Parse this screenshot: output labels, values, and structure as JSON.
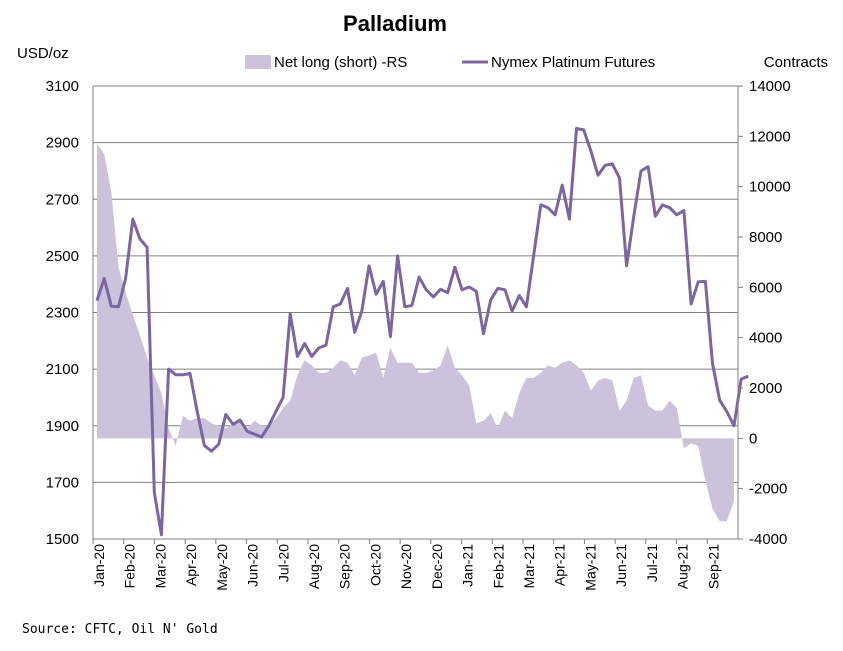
{
  "chart_data": {
    "type": "line",
    "title": "Palladium",
    "ylabel_left": "USD/oz",
    "ylabel_right": "Contracts",
    "source": "Source: CFTC, Oil N' Gold",
    "ylim_left": [
      1500,
      3100
    ],
    "yticks_left": [
      "3100",
      "2900",
      "2700",
      "2500",
      "2300",
      "2100",
      "1900",
      "1700",
      "1500"
    ],
    "ylim_right": [
      -4000,
      14000
    ],
    "yticks_right": [
      "14000",
      "12000",
      "10000",
      "8000",
      "6000",
      "4000",
      "2000",
      "0",
      "-2000",
      "-4000"
    ],
    "grid": true,
    "legend_position": "top",
    "x_ticks": [
      "Jan-20",
      "Feb-20",
      "Mar-20",
      "Apr-20",
      "May-20",
      "Jun-20",
      "Jul-20",
      "Aug-20",
      "Sep-20",
      "Oct-20",
      "Nov-20",
      "Dec-20",
      "Jan-21",
      "Feb-21",
      "Mar-21",
      "Apr-21",
      "May-21",
      "Jun-21",
      "Jul-21",
      "Aug-21",
      "Sep-21"
    ],
    "colors": {
      "area": "#ccc2dc",
      "line": "#7b65a3",
      "grid": "#808080"
    },
    "series": [
      {
        "name": "Net long (short) -RS",
        "type": "area",
        "axis": "right",
        "values": [
          11700,
          11300,
          9800,
          6800,
          5800,
          4900,
          4100,
          3200,
          2500,
          1800,
          400,
          -300,
          900,
          700,
          800,
          800,
          600,
          500,
          400,
          600,
          700,
          400,
          700,
          500,
          500,
          800,
          1200,
          1500,
          2500,
          3100,
          2900,
          2600,
          2600,
          2800,
          3100,
          3000,
          2500,
          3200,
          3300,
          3400,
          2400,
          3600,
          3000,
          3000,
          3000,
          2600,
          2600,
          2700,
          2900,
          3700,
          2800,
          2500,
          2100,
          600,
          700,
          1000,
          400,
          1100,
          800,
          1800,
          2400,
          2400,
          2600,
          2900,
          2800,
          3000,
          3100,
          2900,
          2600,
          1900,
          2300,
          2400,
          2300,
          1100,
          1500,
          2400,
          2500,
          1300,
          1100,
          1100,
          1500,
          1200,
          -400,
          -200,
          -300,
          -1700,
          -2800,
          -3300,
          -3300,
          -2500
        ],
        "x_start": "2020-01-07",
        "x_step_days": 7
      },
      {
        "name": "Nymex Platinum Futures",
        "type": "line",
        "axis": "left",
        "values": [
          2342,
          2420,
          2322,
          2320,
          2420,
          2630,
          2560,
          2530,
          1665,
          1515,
          2100,
          2080,
          2080,
          2085,
          1950,
          1830,
          1810,
          1835,
          1940,
          1905,
          1920,
          1880,
          1870,
          1860,
          1900,
          1950,
          2000,
          2295,
          2145,
          2190,
          2145,
          2175,
          2185,
          2320,
          2330,
          2385,
          2230,
          2305,
          2465,
          2365,
          2410,
          2215,
          2500,
          2320,
          2325,
          2425,
          2380,
          2355,
          2382,
          2370,
          2460,
          2380,
          2390,
          2375,
          2225,
          2345,
          2385,
          2380,
          2305,
          2360,
          2320,
          2500,
          2680,
          2670,
          2645,
          2750,
          2630,
          2950,
          2945,
          2870,
          2785,
          2820,
          2825,
          2775,
          2465,
          2640,
          2800,
          2815,
          2640,
          2680,
          2670,
          2645,
          2660,
          2330,
          2408,
          2410,
          2120,
          1990,
          1950,
          1900,
          2065,
          2075
        ],
        "x_start": "2020-01-07",
        "x_step_days": 7
      }
    ]
  }
}
